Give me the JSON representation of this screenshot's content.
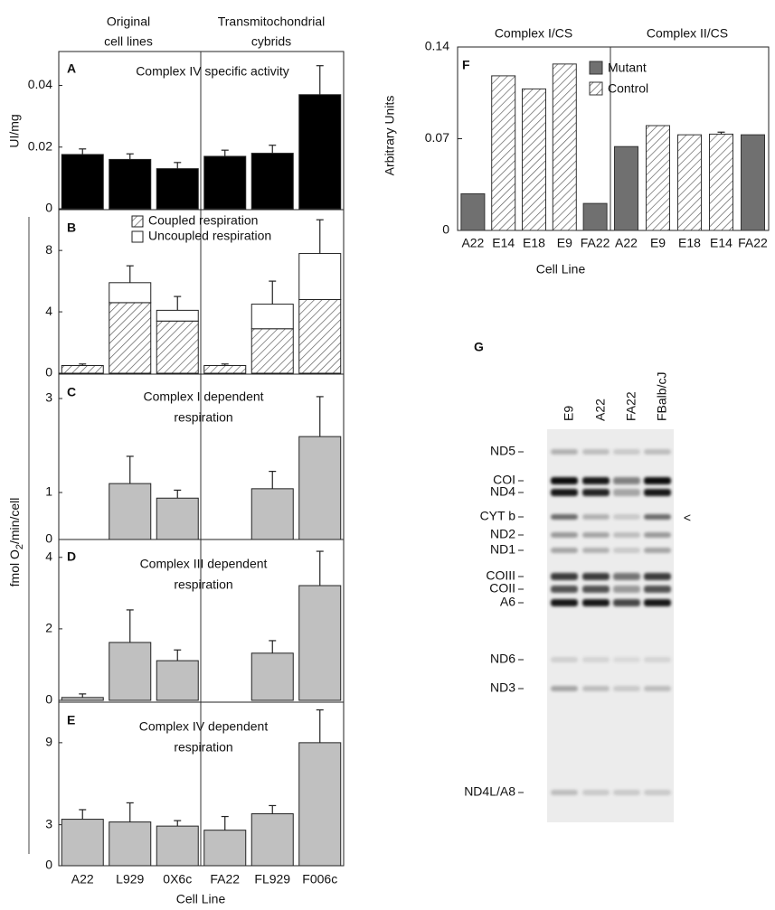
{
  "left_figure": {
    "groups": [
      [
        "Original",
        "cell lines"
      ],
      [
        "Transmitochondrial",
        "cybrids"
      ]
    ],
    "categories": [
      "A22",
      "L929",
      "0X6c",
      "FA22",
      "FL929",
      "F006c"
    ],
    "x_label": "Cell Line",
    "y_label": [
      "fmol O",
      "2",
      "/min/cell"
    ]
  },
  "chart_data": [
    {
      "type": "bar",
      "panel_label": "A",
      "title": [
        "Complex IV specific activity"
      ],
      "y_label": "UI/mg",
      "values": [
        0.0176,
        0.016,
        0.013,
        0.017,
        0.018,
        0.037
      ],
      "errors": [
        0.0018,
        0.0018,
        0.002,
        0.002,
        0.0026,
        0.0094
      ],
      "color": "#000000",
      "ylim": [
        0,
        0.051
      ],
      "yticks": [
        0,
        0.02,
        0.04
      ]
    },
    {
      "type": "stacked_bar",
      "panel_label": "B",
      "series": [
        {
          "name": "Coupled respiration",
          "color": "#ffffff",
          "hatch": true,
          "values": [
            0.5,
            4.6,
            3.4,
            0.5,
            2.9,
            4.8
          ],
          "errors": [
            0.1,
            0.8,
            0.2,
            0.1,
            0.6,
            0.9
          ]
        },
        {
          "name": "Uncoupled respiration",
          "color": "#ffffff",
          "hatch": false,
          "values": [
            0,
            1.3,
            0.7,
            0,
            1.6,
            3.0
          ],
          "errors": [
            null,
            1.1,
            0.9,
            null,
            1.5,
            2.2
          ]
        }
      ],
      "ylim": [
        0,
        10.6
      ],
      "yticks": [
        0,
        4,
        8
      ]
    },
    {
      "type": "bar",
      "panel_label": "C",
      "title": [
        "Complex I dependent",
        "respiration"
      ],
      "values": [
        null,
        1.19,
        0.88,
        null,
        1.08,
        2.19
      ],
      "errors": [
        null,
        0.58,
        0.17,
        null,
        0.37,
        0.85
      ],
      "color": "#c0c0c0",
      "ylim": [
        0,
        3.5
      ],
      "yticks": [
        0,
        1,
        3
      ]
    },
    {
      "type": "bar",
      "panel_label": "D",
      "title": [
        "Complex III dependent",
        "respiration"
      ],
      "values": [
        0.08,
        1.62,
        1.11,
        null,
        1.32,
        3.21
      ],
      "errors": [
        0.1,
        0.91,
        0.3,
        null,
        0.35,
        0.96
      ],
      "color": "#c0c0c0",
      "ylim": [
        0,
        4.5
      ],
      "yticks": [
        0,
        2,
        4
      ]
    },
    {
      "type": "bar",
      "panel_label": "E",
      "title": [
        "Complex IV dependent",
        "respiration"
      ],
      "values": [
        3.4,
        3.2,
        2.9,
        2.6,
        3.8,
        9.0
      ],
      "errors": [
        0.7,
        1.4,
        0.4,
        1.0,
        0.6,
        2.4
      ],
      "color": "#c0c0c0",
      "ylim": [
        0,
        11.9
      ],
      "yticks": [
        0,
        3,
        9
      ]
    },
    {
      "type": "grouped_bar",
      "panel_label": "F",
      "groups": [
        "Complex I/CS",
        "Complex II/CS"
      ],
      "categories": [
        "A22",
        "E14",
        "E18",
        "E9",
        "FA22",
        "A22",
        "E9",
        "E18",
        "E14",
        "FA22"
      ],
      "series": [
        {
          "name": "Mutant",
          "color": "#707070",
          "hatch": false,
          "values": [
            0.028,
            null,
            null,
            null,
            0.0206,
            0.064,
            null,
            null,
            null,
            0.073
          ]
        },
        {
          "name": "Control",
          "color": "#ffffff",
          "hatch": true,
          "values": [
            null,
            0.118,
            0.108,
            0.127,
            null,
            null,
            0.08,
            0.073,
            0.0735,
            null
          ],
          "errors": [
            null,
            null,
            null,
            null,
            null,
            null,
            null,
            null,
            0.0015,
            null
          ]
        }
      ],
      "y_label": "Arbitrary Units",
      "x_label": "Cell Line",
      "ylim": [
        0,
        0.14
      ],
      "yticks": [
        0,
        0.07,
        0.14
      ],
      "legend": "upper right"
    }
  ],
  "gel": {
    "panel_label": "G",
    "lanes": [
      "E9",
      "A22",
      "FA22",
      "FBalb/cJ"
    ],
    "bands": [
      "ND5",
      "COI",
      "ND4",
      "CYT b",
      "ND2",
      "ND1",
      "COIII",
      "COII",
      "A6",
      "ND6",
      "ND3",
      "ND4L/A8"
    ],
    "marker": "<"
  }
}
